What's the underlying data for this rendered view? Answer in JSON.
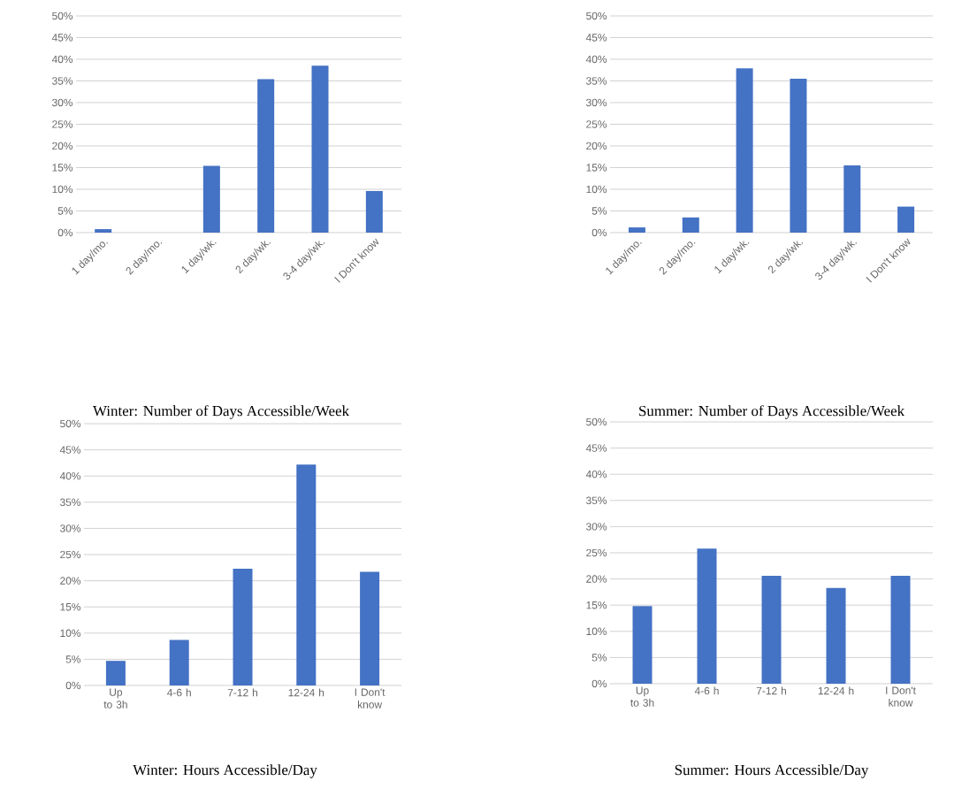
{
  "chart_data": [
    {
      "type": "bar",
      "title": "Winter: Number of Days Accessible/Week",
      "categories": [
        "1 day/mo.",
        "2 day/mo.",
        "1 day/wk.",
        "2 day/wk.",
        "3-4 day/wk.",
        "I Don't know"
      ],
      "values": [
        0.8,
        0,
        15.4,
        35.4,
        38.5,
        9.6
      ],
      "color": "#4472c4",
      "ylim": [
        0,
        50
      ],
      "yticks": [
        {
          "value": 0,
          "label": "0%"
        },
        {
          "value": 5,
          "label": "5%"
        },
        {
          "value": 10,
          "label": "10%"
        },
        {
          "value": 15,
          "label": "15%"
        },
        {
          "value": 20,
          "label": "20%"
        },
        {
          "value": 25,
          "label": "25%"
        },
        {
          "value": 30,
          "label": "30%"
        },
        {
          "value": 35,
          "label": "35%"
        },
        {
          "value": 40,
          "label": "40%"
        },
        {
          "value": 45,
          "label": "45%"
        },
        {
          "value": 50,
          "label": "50%"
        }
      ],
      "grid": "y"
    },
    {
      "type": "bar",
      "title": "Summer: Number of Days Accessible/Week",
      "categories": [
        "1 day/mo.",
        "2 day/mo.",
        "1 day/wk.",
        "2 day/wk.",
        "3-4 day/wk.",
        "I Don't know"
      ],
      "values": [
        1.2,
        3.5,
        37.9,
        35.5,
        15.5,
        6.0
      ],
      "color": "#4472c4",
      "ylim": [
        0,
        50
      ],
      "yticks": [
        {
          "value": 0,
          "label": "0%"
        },
        {
          "value": 5,
          "label": "5%"
        },
        {
          "value": 10,
          "label": "10%"
        },
        {
          "value": 15,
          "label": "15%"
        },
        {
          "value": 20,
          "label": "20%"
        },
        {
          "value": 25,
          "label": "25%"
        },
        {
          "value": 30,
          "label": "30%"
        },
        {
          "value": 35,
          "label": "35%"
        },
        {
          "value": 40,
          "label": "40%"
        },
        {
          "value": 45,
          "label": "45%"
        },
        {
          "value": 50,
          "label": "50%"
        }
      ],
      "grid": "y"
    },
    {
      "type": "bar",
      "title": "Winter: Hours Accessible/Day",
      "categories": [
        "Up to 3h",
        "4-6 h",
        "7-12 h",
        "12-24 h",
        "I Don't know"
      ],
      "values": [
        4.7,
        8.7,
        22.3,
        42.2,
        21.7
      ],
      "color": "#4472c4",
      "ylim": [
        0,
        50
      ],
      "yticks": [
        {
          "value": 0,
          "label": "0%"
        },
        {
          "value": 5,
          "label": "5%"
        },
        {
          "value": 10,
          "label": "10%"
        },
        {
          "value": 15,
          "label": "15%"
        },
        {
          "value": 20,
          "label": "20%"
        },
        {
          "value": 25,
          "label": "25%"
        },
        {
          "value": 30,
          "label": "30%"
        },
        {
          "value": 35,
          "label": "35%"
        },
        {
          "value": 40,
          "label": "40%"
        },
        {
          "value": 45,
          "label": "45%"
        },
        {
          "value": 50,
          "label": "50%"
        }
      ],
      "grid": "y"
    },
    {
      "type": "bar",
      "title": "Summer: Hours Accessible/Day",
      "categories": [
        "Up to 3h",
        "4-6 h",
        "7-12 h",
        "12-24 h",
        "I Don't know"
      ],
      "values": [
        14.8,
        25.8,
        20.6,
        18.3,
        20.6
      ],
      "color": "#4472c4",
      "ylim": [
        0,
        50
      ],
      "yticks": [
        {
          "value": 0,
          "label": "0%"
        },
        {
          "value": 5,
          "label": "5%"
        },
        {
          "value": 10,
          "label": "10%"
        },
        {
          "value": 15,
          "label": "15%"
        },
        {
          "value": 20,
          "label": "20%"
        },
        {
          "value": 25,
          "label": "25%"
        },
        {
          "value": 30,
          "label": "30%"
        },
        {
          "value": 35,
          "label": "35%"
        },
        {
          "value": 40,
          "label": "40%"
        },
        {
          "value": 45,
          "label": "45%"
        },
        {
          "value": 50,
          "label": "50%"
        }
      ],
      "grid": "y"
    }
  ]
}
